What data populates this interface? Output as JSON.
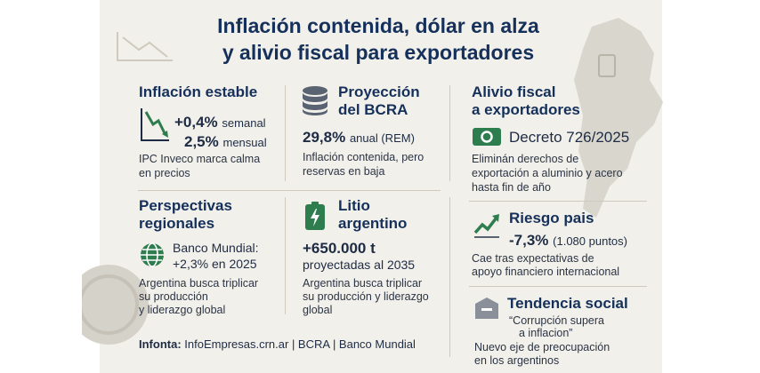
{
  "title": {
    "line1": "Inflación contenida, dólar en alza",
    "line2": "y alivio fiscal para exportadores"
  },
  "inflacion": {
    "heading": "Inflación estable",
    "weekly_value": "+0,4%",
    "weekly_label": "semanal",
    "monthly_value": "2,5%",
    "monthly_label": "mensual",
    "desc_line1": "IPC Inveco marca calma",
    "desc_line2": "en precios"
  },
  "bcra": {
    "heading_line1": "Proyección",
    "heading_line2": "del BCRA",
    "value": "29,8%",
    "value_label": "anual (REM)",
    "desc_line1": "Inflación contenida, pero",
    "desc_line2": "reservas en baja"
  },
  "alivio": {
    "heading_line1": "Alivio fiscal",
    "heading_line2": "a exportadores",
    "decree": "Decreto 726/2025",
    "desc_line1": "Eliminán derechos de",
    "desc_line2": "exportación a aluminio y acero",
    "desc_line3": "hasta fin de año"
  },
  "perspectivas": {
    "heading_line1": "Perspectivas",
    "heading_line2": "regionales",
    "source_line1": "Banco Mundial:",
    "source_line2": "+2,3% en 2025",
    "desc_line1": "Argentina busca triplicar",
    "desc_line2": "su producción",
    "desc_line3": "y liderazgo global"
  },
  "litio": {
    "heading_line1": "Litio",
    "heading_line2": "argentino",
    "value_line1": "+650.000 t",
    "value_line2": "proyectadas al 2035",
    "desc_line1": "Argentina busca triplicar",
    "desc_line2": "su producción y liderazgo",
    "desc_line3": "global"
  },
  "riesgo": {
    "heading": "Riesgo pais",
    "value": "-7,3%",
    "value_note": "(1.080 puntos)",
    "desc_line1": "Cae tras expectativas de",
    "desc_line2": "apoyo financiero internacional"
  },
  "tendencia": {
    "heading": "Tendencia social",
    "quote_line1": "“Corrupción supera",
    "quote_line2": "a inflacion”",
    "desc_line1": "Nuevo eje de preocupación",
    "desc_line2": "en los argentinos"
  },
  "footer": {
    "label": "Infonta:",
    "sources": "InfoEmpresas.crn.ar | BCRA | Banco Mundial"
  },
  "colors": {
    "navy": "#15305a",
    "green": "#2e7d4f",
    "background": "#f2f0ea"
  }
}
